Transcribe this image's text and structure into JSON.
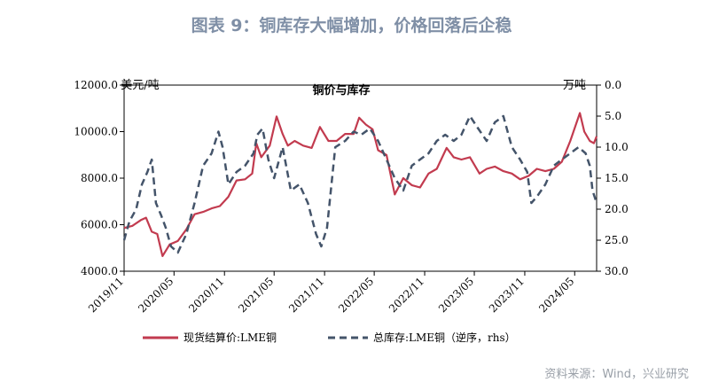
{
  "figure": {
    "title": "图表 9：铜库存大幅增加，价格回落后企稳",
    "source": "资料来源：Wind，兴业研究"
  },
  "chart_data": {
    "type": "line",
    "title": "铜价与库存",
    "left_unit": "美元/吨",
    "right_unit": "万吨",
    "x_ticks": [
      "2019/11",
      "2020/05",
      "2020/11",
      "2021/05",
      "2021/11",
      "2022/05",
      "2022/11",
      "2023/05",
      "2023/11",
      "2024/05"
    ],
    "y_left": {
      "lim": [
        4000,
        12000
      ],
      "ticks": [
        "4000.0",
        "6000.0",
        "8000.0",
        "10000.0",
        "12000.0"
      ]
    },
    "y_right": {
      "lim": [
        0,
        30
      ],
      "inverted": true,
      "ticks": [
        "0.0",
        "5.0",
        "10.0",
        "15.0",
        "20.0",
        "25.0",
        "30.0"
      ]
    },
    "x_range": [
      "2019-11-01",
      "2024-07-20"
    ],
    "legend_position": "bottom",
    "series": [
      {
        "name": "现货结算价:LME铜",
        "axis": "left",
        "color": "#c23b4f",
        "style": "solid",
        "points": [
          [
            "2019-11-01",
            5860
          ],
          [
            "2019-12-01",
            5950
          ],
          [
            "2020-01-01",
            6200
          ],
          [
            "2020-01-20",
            6300
          ],
          [
            "2020-02-10",
            5700
          ],
          [
            "2020-03-01",
            5600
          ],
          [
            "2020-03-20",
            4650
          ],
          [
            "2020-04-15",
            5150
          ],
          [
            "2020-05-15",
            5300
          ],
          [
            "2020-06-15",
            5800
          ],
          [
            "2020-07-15",
            6450
          ],
          [
            "2020-08-15",
            6550
          ],
          [
            "2020-09-15",
            6700
          ],
          [
            "2020-10-15",
            6800
          ],
          [
            "2020-11-15",
            7200
          ],
          [
            "2020-12-15",
            7900
          ],
          [
            "2021-01-15",
            7950
          ],
          [
            "2021-02-10",
            8200
          ],
          [
            "2021-02-25",
            9500
          ],
          [
            "2021-03-15",
            8900
          ],
          [
            "2021-04-15",
            9400
          ],
          [
            "2021-05-10",
            10650
          ],
          [
            "2021-06-01",
            9900
          ],
          [
            "2021-06-20",
            9400
          ],
          [
            "2021-07-15",
            9600
          ],
          [
            "2021-08-15",
            9400
          ],
          [
            "2021-09-15",
            9300
          ],
          [
            "2021-10-15",
            10200
          ],
          [
            "2021-11-15",
            9600
          ],
          [
            "2021-12-15",
            9600
          ],
          [
            "2022-01-15",
            9900
          ],
          [
            "2022-02-15",
            9900
          ],
          [
            "2022-03-07",
            10600
          ],
          [
            "2022-04-01",
            10300
          ],
          [
            "2022-04-25",
            10100
          ],
          [
            "2022-05-15",
            9200
          ],
          [
            "2022-06-15",
            9000
          ],
          [
            "2022-07-15",
            7300
          ],
          [
            "2022-08-15",
            8000
          ],
          [
            "2022-09-15",
            7700
          ],
          [
            "2022-10-15",
            7600
          ],
          [
            "2022-11-15",
            8200
          ],
          [
            "2022-12-15",
            8400
          ],
          [
            "2023-01-20",
            9300
          ],
          [
            "2023-02-15",
            8900
          ],
          [
            "2023-03-15",
            8800
          ],
          [
            "2023-04-15",
            8900
          ],
          [
            "2023-05-20",
            8200
          ],
          [
            "2023-06-15",
            8400
          ],
          [
            "2023-07-15",
            8500
          ],
          [
            "2023-08-15",
            8300
          ],
          [
            "2023-09-15",
            8200
          ],
          [
            "2023-10-15",
            7950
          ],
          [
            "2023-11-15",
            8100
          ],
          [
            "2023-12-15",
            8400
          ],
          [
            "2024-01-15",
            8300
          ],
          [
            "2024-02-15",
            8400
          ],
          [
            "2024-03-15",
            8700
          ],
          [
            "2024-04-15",
            9600
          ],
          [
            "2024-05-20",
            10800
          ],
          [
            "2024-06-05",
            10000
          ],
          [
            "2024-06-25",
            9600
          ],
          [
            "2024-07-10",
            9500
          ],
          [
            "2024-07-20",
            9800
          ]
        ]
      },
      {
        "name": "总库存:LME铜（逆序，rhs）",
        "axis": "right",
        "color": "#44546a",
        "style": "dashed",
        "points": [
          [
            "2019-11-01",
            25
          ],
          [
            "2019-11-20",
            22
          ],
          [
            "2019-12-15",
            20
          ],
          [
            "2020-01-05",
            16
          ],
          [
            "2020-01-25",
            14
          ],
          [
            "2020-02-10",
            12
          ],
          [
            "2020-02-25",
            19
          ],
          [
            "2020-03-15",
            21
          ],
          [
            "2020-04-01",
            23
          ],
          [
            "2020-04-20",
            26
          ],
          [
            "2020-05-15",
            27
          ],
          [
            "2020-06-15",
            24
          ],
          [
            "2020-07-15",
            19
          ],
          [
            "2020-08-15",
            13
          ],
          [
            "2020-09-15",
            11
          ],
          [
            "2020-10-10",
            7.5
          ],
          [
            "2020-10-25",
            10
          ],
          [
            "2020-11-15",
            16
          ],
          [
            "2020-12-15",
            14
          ],
          [
            "2021-01-15",
            13
          ],
          [
            "2021-02-15",
            11
          ],
          [
            "2021-03-01",
            8
          ],
          [
            "2021-03-20",
            7
          ],
          [
            "2021-04-10",
            12
          ],
          [
            "2021-05-01",
            15
          ],
          [
            "2021-06-01",
            10
          ],
          [
            "2021-07-01",
            17
          ],
          [
            "2021-08-01",
            16
          ],
          [
            "2021-09-01",
            19
          ],
          [
            "2021-10-01",
            24
          ],
          [
            "2021-10-20",
            26
          ],
          [
            "2021-11-10",
            23
          ],
          [
            "2021-12-10",
            10
          ],
          [
            "2022-01-15",
            9
          ],
          [
            "2022-02-15",
            7.5
          ],
          [
            "2022-03-15",
            8
          ],
          [
            "2022-04-15",
            7
          ],
          [
            "2022-05-15",
            9
          ],
          [
            "2022-06-15",
            12
          ],
          [
            "2022-07-15",
            15
          ],
          [
            "2022-08-15",
            17
          ],
          [
            "2022-09-15",
            13
          ],
          [
            "2022-10-15",
            12
          ],
          [
            "2022-11-15",
            11
          ],
          [
            "2022-12-15",
            9
          ],
          [
            "2023-01-15",
            8
          ],
          [
            "2023-02-15",
            9
          ],
          [
            "2023-03-15",
            8
          ],
          [
            "2023-04-15",
            5
          ],
          [
            "2023-05-15",
            7
          ],
          [
            "2023-06-15",
            9
          ],
          [
            "2023-07-15",
            6
          ],
          [
            "2023-08-15",
            5
          ],
          [
            "2023-09-15",
            10
          ],
          [
            "2023-10-15",
            12
          ],
          [
            "2023-11-10",
            14
          ],
          [
            "2023-11-25",
            19
          ],
          [
            "2023-12-15",
            18
          ],
          [
            "2024-01-15",
            16
          ],
          [
            "2024-02-15",
            13
          ],
          [
            "2024-03-15",
            12
          ],
          [
            "2024-04-15",
            11
          ],
          [
            "2024-05-15",
            10
          ],
          [
            "2024-06-10",
            11
          ],
          [
            "2024-06-25",
            13
          ],
          [
            "2024-07-05",
            17
          ],
          [
            "2024-07-20",
            19
          ]
        ]
      }
    ]
  }
}
